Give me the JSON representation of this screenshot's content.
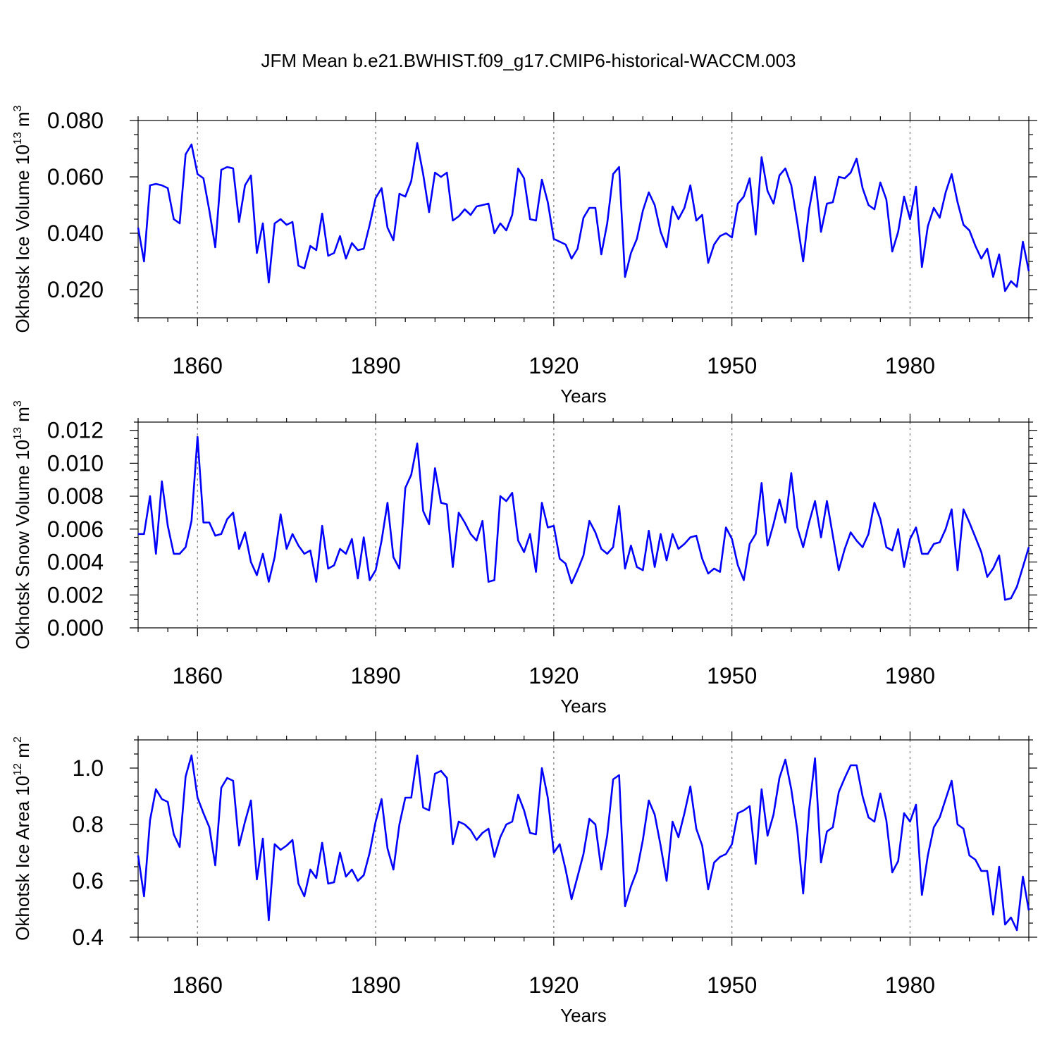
{
  "title": "JFM Mean b.e21.BWHIST.f09_g17.CMIP6-historical-WACCM.003",
  "line_color": "#0000ff",
  "chart_data": [
    {
      "type": "line",
      "name": "okhotsk-ice-volume",
      "ylabel": {
        "text": "Okhotsk Ice Volume 10",
        "exp": "13",
        "unit": " m",
        "unit_exp": "3"
      },
      "xlabel": "Years",
      "xlim": [
        1850,
        2000
      ],
      "ylim": [
        0.01,
        0.08
      ],
      "yticks": [
        0.02,
        0.04,
        0.06,
        0.08
      ],
      "ytick_labels": [
        "0.020",
        "0.040",
        "0.060",
        "0.080"
      ],
      "yminor_step": 0.005,
      "xticks": [
        1860,
        1890,
        1920,
        1950,
        1980
      ],
      "xtick_labels": [
        "1860",
        "1890",
        "1920",
        "1950",
        "1980"
      ],
      "xminor_step": 5,
      "grid": "vertical dashed at major x ticks",
      "x_start": 1850,
      "values": [
        0.042,
        0.03,
        0.057,
        0.0575,
        0.057,
        0.056,
        0.045,
        0.0435,
        0.068,
        0.0715,
        0.061,
        0.0595,
        0.048,
        0.035,
        0.0625,
        0.0635,
        0.063,
        0.044,
        0.057,
        0.0605,
        0.033,
        0.0435,
        0.0225,
        0.0435,
        0.045,
        0.043,
        0.044,
        0.0285,
        0.0275,
        0.0355,
        0.034,
        0.047,
        0.032,
        0.033,
        0.039,
        0.031,
        0.0365,
        0.034,
        0.0345,
        0.043,
        0.0525,
        0.056,
        0.042,
        0.0375,
        0.054,
        0.053,
        0.0585,
        0.072,
        0.061,
        0.0475,
        0.0615,
        0.06,
        0.0615,
        0.0445,
        0.046,
        0.0485,
        0.0465,
        0.0495,
        0.05,
        0.0505,
        0.04,
        0.0435,
        0.041,
        0.0465,
        0.063,
        0.0595,
        0.045,
        0.0445,
        0.059,
        0.051,
        0.038,
        0.037,
        0.036,
        0.031,
        0.0345,
        0.0455,
        0.049,
        0.049,
        0.0325,
        0.0435,
        0.061,
        0.0635,
        0.0245,
        0.033,
        0.038,
        0.048,
        0.0545,
        0.05,
        0.0405,
        0.035,
        0.0495,
        0.045,
        0.049,
        0.057,
        0.0445,
        0.0465,
        0.0295,
        0.036,
        0.039,
        0.04,
        0.0385,
        0.0505,
        0.053,
        0.0595,
        0.0395,
        0.067,
        0.055,
        0.0505,
        0.0605,
        0.063,
        0.057,
        0.044,
        0.03,
        0.0485,
        0.06,
        0.0405,
        0.0505,
        0.051,
        0.06,
        0.0595,
        0.0615,
        0.0665,
        0.056,
        0.05,
        0.0485,
        0.058,
        0.052,
        0.0335,
        0.0405,
        0.053,
        0.045,
        0.0565,
        0.028,
        0.0425,
        0.049,
        0.0455,
        0.0545,
        0.061,
        0.051,
        0.043,
        0.041,
        0.0355,
        0.031,
        0.0345,
        0.0245,
        0.0325,
        0.0195,
        0.023,
        0.021,
        0.037,
        0.0265
      ]
    },
    {
      "type": "line",
      "name": "okhotsk-snow-volume",
      "ylabel": {
        "text": "Okhotsk Snow Volume 10",
        "exp": "13",
        "unit": " m",
        "unit_exp": "3"
      },
      "xlabel": "Years",
      "xlim": [
        1850,
        2000
      ],
      "ylim": [
        0.0,
        0.0125
      ],
      "yticks": [
        0.0,
        0.002,
        0.004,
        0.006,
        0.008,
        0.01,
        0.012
      ],
      "ytick_labels": [
        "0.000",
        "0.002",
        "0.004",
        "0.006",
        "0.008",
        "0.010",
        "0.012"
      ],
      "yminor_step": 0.0005,
      "xticks": [
        1860,
        1890,
        1920,
        1950,
        1980
      ],
      "xtick_labels": [
        "1860",
        "1890",
        "1920",
        "1950",
        "1980"
      ],
      "xminor_step": 5,
      "grid": "vertical dashed at major x ticks",
      "x_start": 1850,
      "values": [
        0.0057,
        0.0057,
        0.008,
        0.0045,
        0.0089,
        0.0062,
        0.0045,
        0.0045,
        0.0049,
        0.0065,
        0.0116,
        0.0064,
        0.0064,
        0.0056,
        0.0057,
        0.0066,
        0.007,
        0.0048,
        0.0058,
        0.004,
        0.0032,
        0.0045,
        0.0028,
        0.0043,
        0.0069,
        0.0048,
        0.0057,
        0.005,
        0.0045,
        0.0047,
        0.0028,
        0.0062,
        0.0036,
        0.0038,
        0.0048,
        0.0045,
        0.0054,
        0.003,
        0.0055,
        0.0029,
        0.0035,
        0.0053,
        0.0076,
        0.0043,
        0.0036,
        0.0085,
        0.0093,
        0.0112,
        0.0071,
        0.0063,
        0.0097,
        0.0076,
        0.0075,
        0.0037,
        0.007,
        0.0064,
        0.0057,
        0.0053,
        0.0065,
        0.0028,
        0.0029,
        0.008,
        0.0077,
        0.0082,
        0.0053,
        0.0046,
        0.0057,
        0.0034,
        0.0076,
        0.0061,
        0.0062,
        0.0042,
        0.0039,
        0.0027,
        0.0035,
        0.0044,
        0.0065,
        0.0058,
        0.0048,
        0.0045,
        0.0049,
        0.0074,
        0.0036,
        0.005,
        0.0037,
        0.0035,
        0.0059,
        0.0037,
        0.0057,
        0.0041,
        0.0057,
        0.0048,
        0.0051,
        0.0055,
        0.0056,
        0.0042,
        0.0033,
        0.0036,
        0.0034,
        0.0061,
        0.0054,
        0.0038,
        0.0029,
        0.0051,
        0.0057,
        0.0088,
        0.005,
        0.0063,
        0.0078,
        0.0064,
        0.0094,
        0.0061,
        0.0049,
        0.0064,
        0.0077,
        0.0055,
        0.0077,
        0.0056,
        0.0035,
        0.0048,
        0.0058,
        0.0053,
        0.0049,
        0.0057,
        0.0076,
        0.0066,
        0.0049,
        0.0047,
        0.006,
        0.0037,
        0.0054,
        0.0061,
        0.0045,
        0.0045,
        0.0051,
        0.0052,
        0.006,
        0.0072,
        0.0035,
        0.0072,
        0.0064,
        0.0055,
        0.0046,
        0.0031,
        0.0036,
        0.0044,
        0.0017,
        0.0018,
        0.0025,
        0.0037,
        0.0049
      ]
    },
    {
      "type": "line",
      "name": "okhotsk-ice-area",
      "ylabel": {
        "text": "Okhotsk Ice Area 10",
        "exp": "12",
        "unit": " m",
        "unit_exp": "2"
      },
      "xlabel": "Years",
      "xlim": [
        1850,
        2000
      ],
      "ylim": [
        0.4,
        1.1
      ],
      "yticks": [
        0.4,
        0.6,
        0.8,
        1.0
      ],
      "ytick_labels": [
        "0.4",
        "0.6",
        "0.8",
        "1.0"
      ],
      "yminor_step": 0.05,
      "xticks": [
        1860,
        1890,
        1920,
        1950,
        1980
      ],
      "xtick_labels": [
        "1860",
        "1890",
        "1920",
        "1950",
        "1980"
      ],
      "xminor_step": 5,
      "grid": "vertical dashed at major x ticks",
      "x_start": 1850,
      "values": [
        0.69,
        0.545,
        0.815,
        0.925,
        0.89,
        0.88,
        0.765,
        0.72,
        0.97,
        1.045,
        0.895,
        0.84,
        0.79,
        0.655,
        0.93,
        0.965,
        0.955,
        0.725,
        0.81,
        0.885,
        0.605,
        0.75,
        0.46,
        0.73,
        0.71,
        0.725,
        0.745,
        0.59,
        0.545,
        0.64,
        0.61,
        0.735,
        0.59,
        0.595,
        0.7,
        0.615,
        0.64,
        0.6,
        0.62,
        0.7,
        0.81,
        0.89,
        0.715,
        0.64,
        0.8,
        0.895,
        0.895,
        1.045,
        0.86,
        0.85,
        0.98,
        0.99,
        0.965,
        0.73,
        0.81,
        0.8,
        0.78,
        0.745,
        0.77,
        0.785,
        0.685,
        0.755,
        0.8,
        0.81,
        0.905,
        0.85,
        0.77,
        0.765,
        1.0,
        0.895,
        0.7,
        0.73,
        0.64,
        0.535,
        0.615,
        0.695,
        0.82,
        0.8,
        0.64,
        0.76,
        0.96,
        0.975,
        0.51,
        0.58,
        0.635,
        0.745,
        0.885,
        0.835,
        0.725,
        0.6,
        0.81,
        0.755,
        0.84,
        0.935,
        0.785,
        0.725,
        0.57,
        0.665,
        0.685,
        0.695,
        0.73,
        0.84,
        0.85,
        0.865,
        0.66,
        0.925,
        0.76,
        0.835,
        0.965,
        1.03,
        0.925,
        0.78,
        0.555,
        0.85,
        1.035,
        0.665,
        0.775,
        0.79,
        0.915,
        0.965,
        1.01,
        1.01,
        0.9,
        0.825,
        0.81,
        0.91,
        0.815,
        0.63,
        0.67,
        0.84,
        0.81,
        0.87,
        0.55,
        0.69,
        0.79,
        0.825,
        0.89,
        0.955,
        0.8,
        0.785,
        0.69,
        0.675,
        0.635,
        0.635,
        0.48,
        0.65,
        0.445,
        0.47,
        0.425,
        0.615,
        0.495
      ]
    }
  ]
}
